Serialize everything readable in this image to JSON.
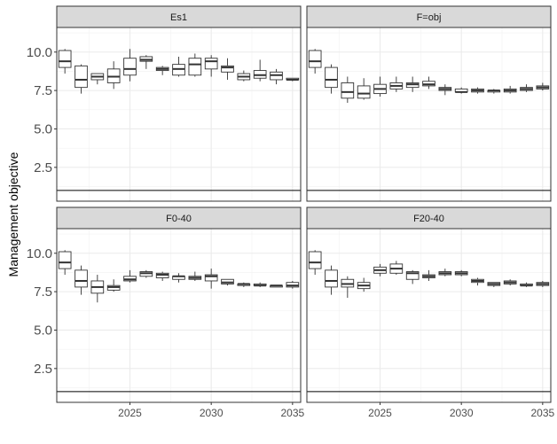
{
  "chart_data": {
    "type": "boxplot",
    "ylabel": "Management objective",
    "xlabel": "",
    "xlim": [
      2020.5,
      2035.5
    ],
    "ylim": [
      0.3,
      11.6
    ],
    "x_ticks": [
      2025,
      2030,
      2035
    ],
    "y_ticks": [
      2.5,
      5.0,
      7.5,
      10.0
    ],
    "y_tick_labels": [
      "2.5",
      "5.0",
      "7.5",
      "10.0"
    ],
    "grid": true,
    "reference_line": 1.0,
    "panels": [
      {
        "title": "Es1",
        "boxes": [
          {
            "x": 2021,
            "min": 8.6,
            "q1": 9.0,
            "median": 9.4,
            "q3": 10.1,
            "max": 10.2
          },
          {
            "x": 2022,
            "min": 7.3,
            "q1": 7.7,
            "median": 8.2,
            "q3": 9.1,
            "max": 9.2
          },
          {
            "x": 2023,
            "min": 7.9,
            "q1": 8.2,
            "median": 8.4,
            "q3": 8.6,
            "max": 8.6
          },
          {
            "x": 2024,
            "min": 7.6,
            "q1": 8.0,
            "median": 8.4,
            "q3": 8.9,
            "max": 9.4
          },
          {
            "x": 2025,
            "min": 8.1,
            "q1": 8.5,
            "median": 8.9,
            "q3": 9.6,
            "max": 10.2
          },
          {
            "x": 2026,
            "min": 8.9,
            "q1": 9.4,
            "median": 9.5,
            "q3": 9.7,
            "max": 9.8
          },
          {
            "x": 2027,
            "min": 8.5,
            "q1": 8.8,
            "median": 8.9,
            "q3": 9.0,
            "max": 9.1
          },
          {
            "x": 2028,
            "min": 8.4,
            "q1": 8.5,
            "median": 8.9,
            "q3": 9.2,
            "max": 9.7
          },
          {
            "x": 2029,
            "min": 8.4,
            "q1": 8.5,
            "median": 9.2,
            "q3": 9.6,
            "max": 9.9
          },
          {
            "x": 2030,
            "min": 8.4,
            "q1": 8.9,
            "median": 9.4,
            "q3": 9.6,
            "max": 9.8
          },
          {
            "x": 2031,
            "min": 8.2,
            "q1": 8.7,
            "median": 9.0,
            "q3": 9.1,
            "max": 9.6
          },
          {
            "x": 2032,
            "min": 8.1,
            "q1": 8.2,
            "median": 8.4,
            "q3": 8.6,
            "max": 8.8
          },
          {
            "x": 2033,
            "min": 8.1,
            "q1": 8.3,
            "median": 8.5,
            "q3": 8.8,
            "max": 9.5
          },
          {
            "x": 2034,
            "min": 7.9,
            "q1": 8.2,
            "median": 8.5,
            "q3": 8.7,
            "max": 8.9
          },
          {
            "x": 2035,
            "min": 8.1,
            "q1": 8.2,
            "median": 8.2,
            "q3": 8.3,
            "max": 8.3
          }
        ]
      },
      {
        "title": "F=obj",
        "boxes": [
          {
            "x": 2021,
            "min": 8.6,
            "q1": 9.0,
            "median": 9.4,
            "q3": 10.1,
            "max": 10.2
          },
          {
            "x": 2022,
            "min": 7.3,
            "q1": 7.7,
            "median": 8.2,
            "q3": 9.0,
            "max": 9.2
          },
          {
            "x": 2023,
            "min": 6.7,
            "q1": 7.0,
            "median": 7.4,
            "q3": 8.0,
            "max": 8.4
          },
          {
            "x": 2024,
            "min": 6.9,
            "q1": 7.0,
            "median": 7.3,
            "q3": 7.8,
            "max": 8.3
          },
          {
            "x": 2025,
            "min": 7.1,
            "q1": 7.3,
            "median": 7.6,
            "q3": 7.9,
            "max": 8.4
          },
          {
            "x": 2026,
            "min": 7.4,
            "q1": 7.6,
            "median": 7.8,
            "q3": 8.0,
            "max": 8.4
          },
          {
            "x": 2027,
            "min": 7.4,
            "q1": 7.7,
            "median": 7.9,
            "q3": 8.0,
            "max": 8.4
          },
          {
            "x": 2028,
            "min": 7.6,
            "q1": 7.8,
            "median": 7.9,
            "q3": 8.1,
            "max": 8.4
          },
          {
            "x": 2029,
            "min": 7.2,
            "q1": 7.5,
            "median": 7.6,
            "q3": 7.7,
            "max": 7.9
          },
          {
            "x": 2030,
            "min": 7.3,
            "q1": 7.4,
            "median": 7.4,
            "q3": 7.6,
            "max": 7.7
          },
          {
            "x": 2031,
            "min": 7.3,
            "q1": 7.4,
            "median": 7.5,
            "q3": 7.6,
            "max": 7.7
          },
          {
            "x": 2032,
            "min": 7.3,
            "q1": 7.4,
            "median": 7.5,
            "q3": 7.5,
            "max": 7.6
          },
          {
            "x": 2033,
            "min": 7.3,
            "q1": 7.4,
            "median": 7.5,
            "q3": 7.6,
            "max": 7.8
          },
          {
            "x": 2034,
            "min": 7.4,
            "q1": 7.5,
            "median": 7.6,
            "q3": 7.7,
            "max": 7.9
          },
          {
            "x": 2035,
            "min": 7.5,
            "q1": 7.6,
            "median": 7.7,
            "q3": 7.8,
            "max": 8.0
          }
        ]
      },
      {
        "title": "F0-40",
        "boxes": [
          {
            "x": 2021,
            "min": 8.6,
            "q1": 9.0,
            "median": 9.4,
            "q3": 10.1,
            "max": 10.2
          },
          {
            "x": 2022,
            "min": 7.3,
            "q1": 7.8,
            "median": 8.2,
            "q3": 8.9,
            "max": 9.2
          },
          {
            "x": 2023,
            "min": 6.8,
            "q1": 7.4,
            "median": 7.8,
            "q3": 8.2,
            "max": 8.6
          },
          {
            "x": 2024,
            "min": 7.5,
            "q1": 7.6,
            "median": 7.8,
            "q3": 7.9,
            "max": 8.3
          },
          {
            "x": 2025,
            "min": 8.1,
            "q1": 8.2,
            "median": 8.3,
            "q3": 8.5,
            "max": 8.9
          },
          {
            "x": 2026,
            "min": 8.4,
            "q1": 8.5,
            "median": 8.7,
            "q3": 8.8,
            "max": 8.9
          },
          {
            "x": 2027,
            "min": 8.2,
            "q1": 8.4,
            "median": 8.6,
            "q3": 8.7,
            "max": 8.8
          },
          {
            "x": 2028,
            "min": 8.1,
            "q1": 8.3,
            "median": 8.5,
            "q3": 8.5,
            "max": 8.7
          },
          {
            "x": 2029,
            "min": 8.2,
            "q1": 8.3,
            "median": 8.4,
            "q3": 8.5,
            "max": 8.8
          },
          {
            "x": 2030,
            "min": 7.7,
            "q1": 8.2,
            "median": 8.5,
            "q3": 8.6,
            "max": 9.0
          },
          {
            "x": 2031,
            "min": 7.9,
            "q1": 8.0,
            "median": 8.1,
            "q3": 8.3,
            "max": 8.3
          },
          {
            "x": 2032,
            "min": 7.8,
            "q1": 7.9,
            "median": 8.0,
            "q3": 8.0,
            "max": 8.1
          },
          {
            "x": 2033,
            "min": 7.8,
            "q1": 7.9,
            "median": 7.9,
            "q3": 8.0,
            "max": 8.1
          },
          {
            "x": 2034,
            "min": 7.8,
            "q1": 7.8,
            "median": 7.9,
            "q3": 7.9,
            "max": 7.9
          },
          {
            "x": 2035,
            "min": 7.7,
            "q1": 7.8,
            "median": 7.9,
            "q3": 8.1,
            "max": 8.2
          }
        ]
      },
      {
        "title": "F20-40",
        "boxes": [
          {
            "x": 2021,
            "min": 8.6,
            "q1": 9.0,
            "median": 9.4,
            "q3": 10.1,
            "max": 10.2
          },
          {
            "x": 2022,
            "min": 7.3,
            "q1": 7.8,
            "median": 8.2,
            "q3": 8.9,
            "max": 9.2
          },
          {
            "x": 2023,
            "min": 7.1,
            "q1": 7.8,
            "median": 8.0,
            "q3": 8.3,
            "max": 8.5
          },
          {
            "x": 2024,
            "min": 7.5,
            "q1": 7.7,
            "median": 7.9,
            "q3": 8.1,
            "max": 8.4
          },
          {
            "x": 2025,
            "min": 8.5,
            "q1": 8.7,
            "median": 8.9,
            "q3": 9.1,
            "max": 9.3
          },
          {
            "x": 2026,
            "min": 8.6,
            "q1": 8.7,
            "median": 9.0,
            "q3": 9.3,
            "max": 9.5
          },
          {
            "x": 2027,
            "min": 8.0,
            "q1": 8.3,
            "median": 8.7,
            "q3": 8.8,
            "max": 8.9
          },
          {
            "x": 2028,
            "min": 8.2,
            "q1": 8.4,
            "median": 8.5,
            "q3": 8.6,
            "max": 8.9
          },
          {
            "x": 2029,
            "min": 8.5,
            "q1": 8.6,
            "median": 8.7,
            "q3": 8.8,
            "max": 9.0
          },
          {
            "x": 2030,
            "min": 8.5,
            "q1": 8.6,
            "median": 8.7,
            "q3": 8.8,
            "max": 8.9
          },
          {
            "x": 2031,
            "min": 7.9,
            "q1": 8.1,
            "median": 8.2,
            "q3": 8.3,
            "max": 8.4
          },
          {
            "x": 2032,
            "min": 7.8,
            "q1": 7.9,
            "median": 8.0,
            "q3": 8.1,
            "max": 8.1
          },
          {
            "x": 2033,
            "min": 7.9,
            "q1": 8.0,
            "median": 8.1,
            "q3": 8.2,
            "max": 8.3
          },
          {
            "x": 2034,
            "min": 7.8,
            "q1": 7.9,
            "median": 7.9,
            "q3": 8.0,
            "max": 8.1
          },
          {
            "x": 2035,
            "min": 7.8,
            "q1": 7.9,
            "median": 8.0,
            "q3": 8.1,
            "max": 8.2
          }
        ]
      }
    ]
  }
}
